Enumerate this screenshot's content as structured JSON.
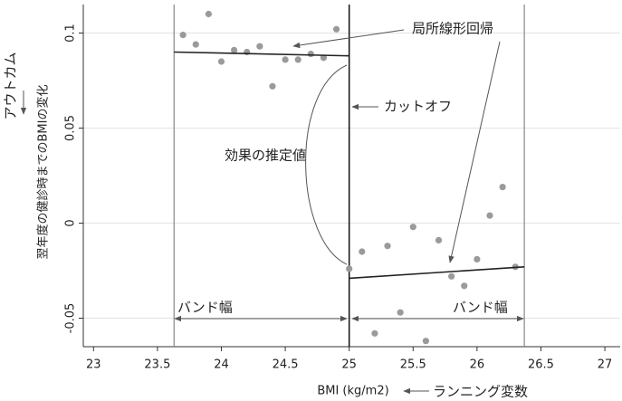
{
  "chart_data": {
    "type": "scatter",
    "x_label": "BMI (kg/m2)",
    "x_label_note": "ランニング変数",
    "y_label": "翌年度の健診時までのBMIの変化",
    "y_label_note": "アウトカム",
    "xlim": [
      22.92,
      27.12
    ],
    "ylim": [
      -0.065,
      0.115
    ],
    "xticks": [
      23,
      23.5,
      24,
      24.5,
      25,
      25.5,
      26,
      26.5,
      27
    ],
    "yticks": [
      -0.05,
      0,
      0.05,
      0.1
    ],
    "grid": true,
    "series": [
      {
        "color": "#9a9a9a",
        "x": [
          23.7,
          23.8,
          23.9,
          24.0,
          24.1,
          24.2,
          24.3,
          24.4,
          24.5,
          24.6,
          24.7,
          24.8,
          24.9
        ],
        "values": [
          0.099,
          0.094,
          0.11,
          0.085,
          0.091,
          0.09,
          0.093,
          0.072,
          0.086,
          0.086,
          0.089,
          0.087,
          0.102
        ]
      },
      {
        "color": "#9a9a9a",
        "x": [
          25.0,
          25.1,
          25.2,
          25.3,
          25.4,
          25.5,
          25.6,
          25.7,
          25.8,
          25.9,
          26.0,
          26.1,
          26.2,
          26.3
        ],
        "values": [
          -0.024,
          -0.015,
          -0.058,
          -0.012,
          -0.047,
          -0.002,
          -0.062,
          -0.009,
          -0.028,
          -0.033,
          -0.019,
          0.004,
          0.019,
          -0.023
        ]
      },
      {
        "type": "line",
        "color": "#222222",
        "x": [
          23.63,
          25.0
        ],
        "values": [
          0.09,
          0.088
        ]
      },
      {
        "type": "line",
        "color": "#222222",
        "x": [
          25.0,
          26.37
        ],
        "values": [
          -0.029,
          -0.023
        ]
      }
    ],
    "vlines": [
      23.63,
      25,
      26.37
    ],
    "annotations": [
      "局所線形回帰",
      "カットオフ",
      "効果の推定値",
      "バンド幅",
      "バンド幅"
    ]
  }
}
